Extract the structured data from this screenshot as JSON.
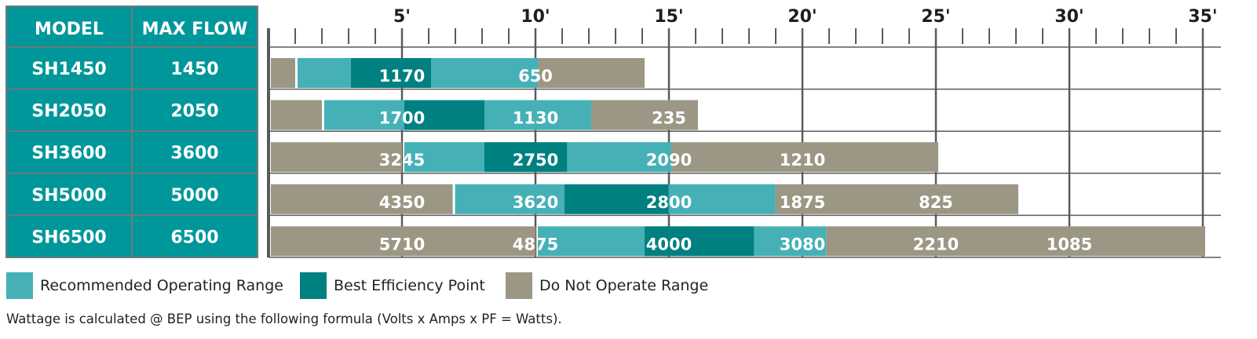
{
  "chart_data": {
    "type": "bar",
    "orientation": "horizontal-ranges",
    "columns": {
      "model": "MODEL",
      "max_flow": "MAX FLOW"
    },
    "x_ticks": [
      {
        "value": 5,
        "label": "5'"
      },
      {
        "value": 10,
        "label": "10'"
      },
      {
        "value": 15,
        "label": "15'"
      },
      {
        "value": 20,
        "label": "20'"
      },
      {
        "value": 25,
        "label": "25'"
      },
      {
        "value": 30,
        "label": "30'"
      },
      {
        "value": 35,
        "label": "35'"
      }
    ],
    "xlim": [
      0,
      35
    ],
    "grid": true,
    "rows": [
      {
        "model": "SH1450",
        "max_flow": "1450",
        "segments": [
          {
            "range": "dno",
            "from": 0,
            "to": 1.0
          },
          {
            "range": "rec",
            "from": 1.0,
            "to": 3.0
          },
          {
            "range": "bep",
            "from": 3.0,
            "to": 6.0
          },
          {
            "range": "rec",
            "from": 6.0,
            "to": 10.0
          },
          {
            "range": "dno",
            "from": 10.0,
            "to": 14.0
          }
        ],
        "labels": [
          {
            "at": 5,
            "text": "1170"
          },
          {
            "at": 10,
            "text": "650"
          }
        ]
      },
      {
        "model": "SH2050",
        "max_flow": "2050",
        "segments": [
          {
            "range": "dno",
            "from": 0,
            "to": 2.0
          },
          {
            "range": "rec",
            "from": 2.0,
            "to": 5.0
          },
          {
            "range": "bep",
            "from": 5.0,
            "to": 8.0
          },
          {
            "range": "rec",
            "from": 8.0,
            "to": 12.0
          },
          {
            "range": "dno",
            "from": 12.0,
            "to": 16.0
          }
        ],
        "labels": [
          {
            "at": 5,
            "text": "1700"
          },
          {
            "at": 10,
            "text": "1130"
          },
          {
            "at": 15,
            "text": "235"
          }
        ]
      },
      {
        "model": "SH3600",
        "max_flow": "3600",
        "segments": [
          {
            "range": "dno",
            "from": 0,
            "to": 5.0
          },
          {
            "range": "rec",
            "from": 5.0,
            "to": 8.0
          },
          {
            "range": "bep",
            "from": 8.0,
            "to": 11.1
          },
          {
            "range": "rec",
            "from": 11.1,
            "to": 15.0
          },
          {
            "range": "dno",
            "from": 15.0,
            "to": 25.0
          }
        ],
        "labels": [
          {
            "at": 5,
            "text": "3245"
          },
          {
            "at": 10,
            "text": "2750"
          },
          {
            "at": 15,
            "text": "2090"
          },
          {
            "at": 20,
            "text": "1210"
          }
        ]
      },
      {
        "model": "SH5000",
        "max_flow": "5000",
        "segments": [
          {
            "range": "dno",
            "from": 0,
            "to": 6.9
          },
          {
            "range": "rec",
            "from": 6.9,
            "to": 11.0
          },
          {
            "range": "bep",
            "from": 11.0,
            "to": 14.9
          },
          {
            "range": "rec",
            "from": 14.9,
            "to": 18.9
          },
          {
            "range": "dno",
            "from": 18.9,
            "to": 28.0
          }
        ],
        "labels": [
          {
            "at": 5,
            "text": "4350"
          },
          {
            "at": 10,
            "text": "3620"
          },
          {
            "at": 15,
            "text": "2800"
          },
          {
            "at": 20,
            "text": "1875"
          },
          {
            "at": 25,
            "text": "825"
          }
        ]
      },
      {
        "model": "SH6500",
        "max_flow": "6500",
        "segments": [
          {
            "range": "dno",
            "from": 0,
            "to": 10.0
          },
          {
            "range": "rec",
            "from": 10.0,
            "to": 14.0
          },
          {
            "range": "bep",
            "from": 14.0,
            "to": 18.1
          },
          {
            "range": "rec",
            "from": 18.1,
            "to": 20.8
          },
          {
            "range": "dno",
            "from": 20.8,
            "to": 35.0
          }
        ],
        "labels": [
          {
            "at": 5,
            "text": "5710"
          },
          {
            "at": 10,
            "text": "4875"
          },
          {
            "at": 15,
            "text": "4000"
          },
          {
            "at": 20,
            "text": "3080"
          },
          {
            "at": 25,
            "text": "2210"
          },
          {
            "at": 30,
            "text": "1085"
          }
        ]
      }
    ],
    "legend": [
      {
        "key": "rec",
        "label": "Recommended Operating Range",
        "color": "#45b1b6"
      },
      {
        "key": "bep",
        "label": "Best Efficiency Point",
        "color": "#008080"
      },
      {
        "key": "dno",
        "label": "Do Not Operate Range",
        "color": "#9c9785"
      }
    ]
  },
  "colors": {
    "header_bg": "#00979a",
    "cell_border": "#6f7a7c",
    "grid": "#5a5a5a",
    "label_text": "#ffffff",
    "tick_text": "#1e1e1e"
  },
  "footnote": "Wattage is calculated @ BEP using the following formula   (Volts x Amps x PF = Watts)."
}
